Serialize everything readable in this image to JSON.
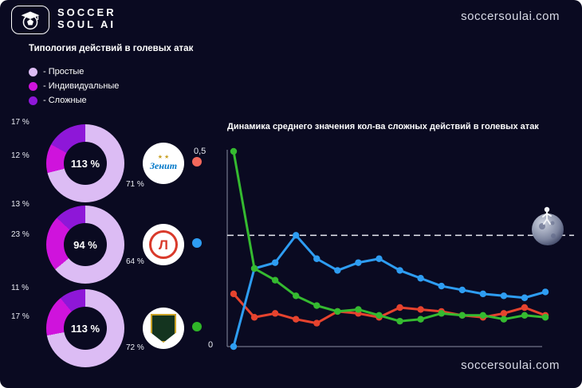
{
  "header": {
    "brand_line1": "SOCCER",
    "brand_line2": "SOUL AI",
    "url_top": "soccersoulai.com",
    "url_bottom": "soccersoulai.com"
  },
  "typology": {
    "title": "Типология действий в голевых атак",
    "legend": [
      {
        "label": "- Простые",
        "color": "#dcbcf4"
      },
      {
        "label": "- Индивидуальные",
        "color": "#cf13dc"
      },
      {
        "label": "- Сложные",
        "color": "#8e17d8"
      }
    ],
    "donuts": [
      {
        "team": "Зенит",
        "logo_text": "Зенит",
        "logo_stars": "★ ★",
        "center_label": "113 %",
        "marker_color": "#f4695c",
        "segments": [
          {
            "name": "Простые",
            "value": 71,
            "label": "71 %"
          },
          {
            "name": "Индивидуальные",
            "value": 12,
            "label": "12 %"
          },
          {
            "name": "Сложные",
            "value": 17,
            "label": "17 %"
          }
        ]
      },
      {
        "team": "Локомотив",
        "logo_text": "Л",
        "center_label": "94 %",
        "marker_color": "#2e9df2",
        "segments": [
          {
            "name": "Простые",
            "value": 64,
            "label": "64 %"
          },
          {
            "name": "Индивидуальные",
            "value": 23,
            "label": "23 %"
          },
          {
            "name": "Сложные",
            "value": 13,
            "label": "13 %"
          }
        ]
      },
      {
        "team": "Краснодар",
        "logo_text": "",
        "center_label": "113 %",
        "marker_color": "#2fb528",
        "segments": [
          {
            "name": "Простые",
            "value": 72,
            "label": "72 %"
          },
          {
            "name": "Индивидуальные",
            "value": 17,
            "label": "17 %"
          },
          {
            "name": "Сложные",
            "value": 11,
            "label": "11 %"
          }
        ]
      }
    ]
  },
  "chart_data": {
    "type": "line",
    "title": "Динамика среднего значения кол-ва сложных действий в голевых атак",
    "x_points": 16,
    "ylim": [
      0,
      0.5
    ],
    "ytick_labels": [
      "0",
      "0,5"
    ],
    "dashed_reference_value": 0.285,
    "grid": false,
    "series": [
      {
        "name": "Зенит",
        "color": "#e6432e",
        "values": [
          0.135,
          0.075,
          0.085,
          0.07,
          0.06,
          0.09,
          0.085,
          0.075,
          0.1,
          0.095,
          0.09,
          0.08,
          0.075,
          0.085,
          0.1,
          0.08
        ]
      },
      {
        "name": "Локомотив",
        "color": "#2e9df2",
        "values": [
          0,
          0.2,
          0.215,
          0.285,
          0.225,
          0.195,
          0.215,
          0.225,
          0.195,
          0.175,
          0.155,
          0.145,
          0.135,
          0.13,
          0.125,
          0.14
        ]
      },
      {
        "name": "Краснодар",
        "color": "#35ba30",
        "values": [
          0.5,
          0.2,
          0.17,
          0.13,
          0.105,
          0.09,
          0.095,
          0.08,
          0.065,
          0.07,
          0.085,
          0.08,
          0.08,
          0.07,
          0.08,
          0.075
        ]
      }
    ]
  }
}
